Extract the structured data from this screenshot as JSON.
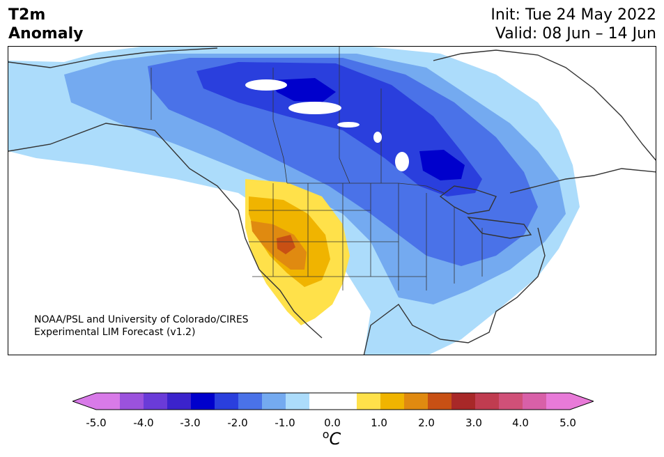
{
  "title": {
    "line1": "T2m",
    "line2": "Anomaly"
  },
  "dates": {
    "init": "Init: Tue 24 May 2022",
    "valid": "Valid: 08 Jun – 14 Jun"
  },
  "credit": {
    "line1": "NOAA/PSL and University of Colorado/CIRES",
    "line2": "Experimental LIM Forecast (v1.2)"
  },
  "colorbar": {
    "ticks": [
      "-5.0",
      "-4.0",
      "-3.0",
      "-2.0",
      "-1.0",
      "0.0",
      "1.0",
      "2.0",
      "3.0",
      "4.0",
      "5.0"
    ],
    "unit_sup": "o",
    "unit": "C",
    "colors": [
      "#d87ae8",
      "#9b52dd",
      "#6a3bd8",
      "#3b23cc",
      "#0000cc",
      "#2a3fdd",
      "#4a72e8",
      "#74aaf0",
      "#acdcfb",
      "#ffffff",
      "#ffffff",
      "#ffe14a",
      "#f0b400",
      "#e08a10",
      "#c85014",
      "#a82828",
      "#c03c50",
      "#d05078",
      "#d860a8",
      "#e87ad8"
    ],
    "under_color": "#d87ae8",
    "over_color": "#e87ad8"
  }
}
